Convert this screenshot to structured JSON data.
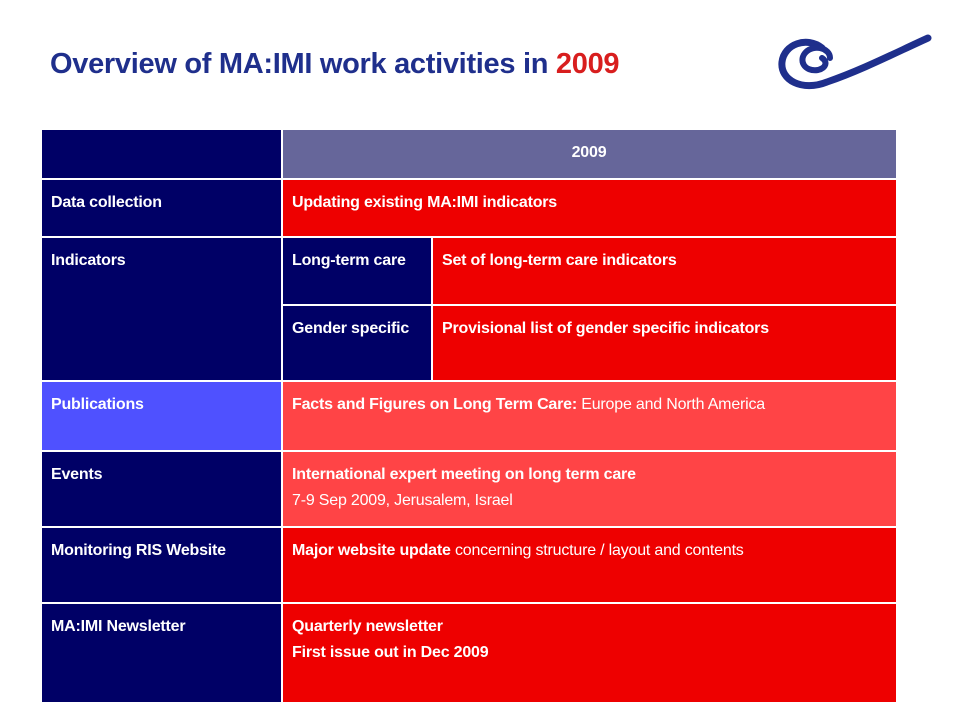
{
  "slide": {
    "title_main": "Overview of MA:IMI work activities in ",
    "title_year": "2009",
    "logo_icon": "council-of-europe-spiral-logo"
  },
  "table": {
    "header_year": "2009",
    "rows": {
      "data_collection": {
        "label": "Data collection",
        "content": "Updating existing MA:IMI indicators"
      },
      "indicators": {
        "label": "Indicators",
        "long_term_care": {
          "sub_label": "Long-term care",
          "content": "Set of long-term care indicators"
        },
        "gender_specific": {
          "sub_label": "Gender specific",
          "content": "Provisional list of gender specific indicators"
        }
      },
      "publications": {
        "label": "Publications",
        "content_bold": "Facts and Figures on Long Term Care:",
        "content_normal": " Europe and North America"
      },
      "events": {
        "label": "Events",
        "content_bold": "International expert meeting on long term care",
        "content_normal": "7-9 Sep 2009, Jerusalem, Israel"
      },
      "monitoring": {
        "label": "Monitoring RIS Website",
        "content_bold": "Major website update",
        "content_normal": " concerning structure / layout and contents"
      },
      "newsletter": {
        "label": "MA:IMI Newsletter",
        "content_line1": "Quarterly newsletter",
        "content_line2": "First issue out in Dec 2009"
      }
    }
  },
  "colors": {
    "title_blue": "#1f2f8c",
    "title_red": "#d81e1e",
    "navy": "#000066",
    "header_gray": "#66669a",
    "red": "#ee0000",
    "light_red": "#ff4446",
    "bright_blue": "#4f51ff"
  }
}
